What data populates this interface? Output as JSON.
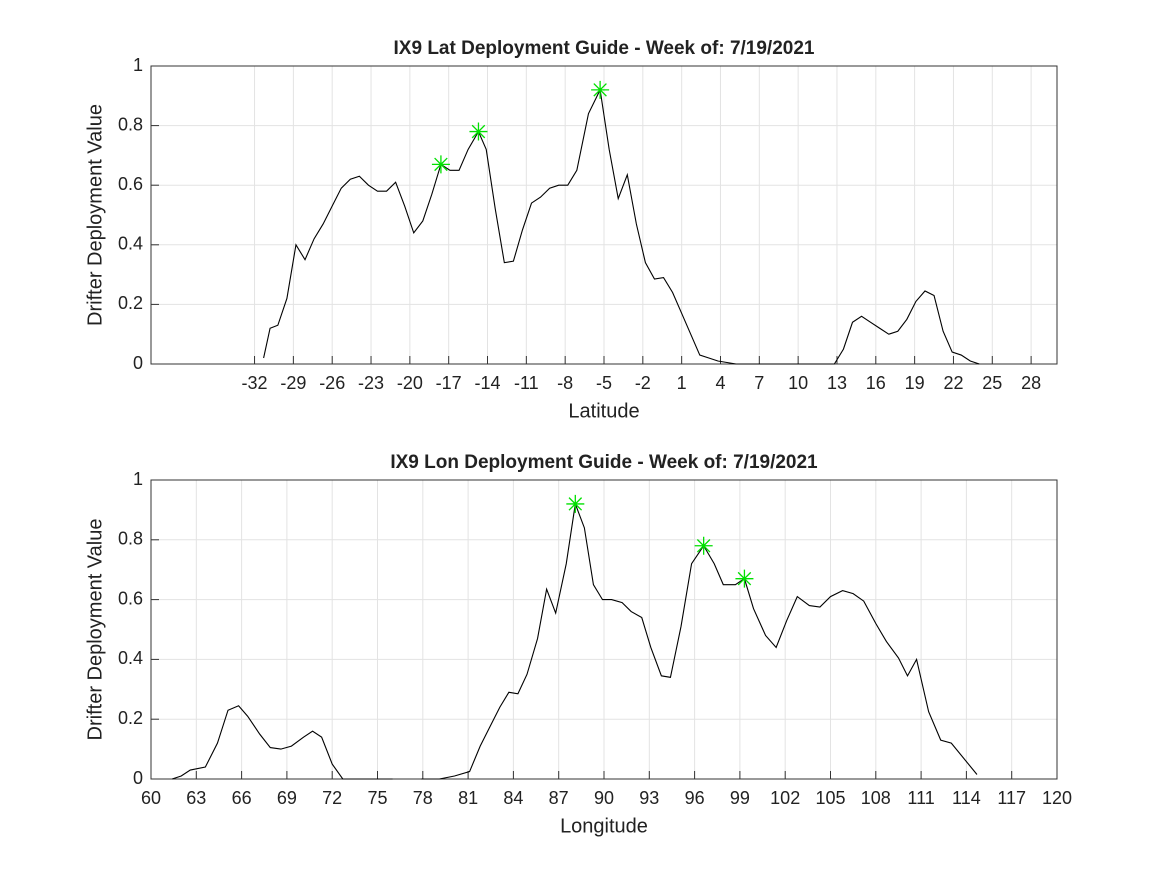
{
  "chart_data": [
    {
      "type": "line",
      "title": "IX9 Lat Deployment Guide - Week of: 7/19/2021",
      "xlabel": "Latitude",
      "ylabel": "Drifter Deployment Value",
      "xlim": [
        -40,
        30
      ],
      "xticks": [
        -32,
        -29,
        -26,
        -23,
        -20,
        -17,
        -14,
        -11,
        -8,
        -5,
        -2,
        1,
        4,
        7,
        10,
        13,
        16,
        19,
        22,
        25,
        28
      ],
      "ylim": [
        0,
        1
      ],
      "yticks": [
        0,
        0.2,
        0.4,
        0.6,
        0.8,
        1
      ],
      "grid": true,
      "box": true,
      "series": [
        {
          "color": "#000000",
          "marker": "none",
          "x": [
            -31.3,
            -30.8,
            -30.2,
            -29.5,
            -28.8,
            -28.1,
            -27.4,
            -26.7,
            -26.0,
            -25.3,
            -24.6,
            -23.9,
            -23.2,
            -22.5,
            -21.8,
            -21.1,
            -20.4,
            -19.7,
            -19.0,
            -18.3,
            -17.6,
            -16.9,
            -16.2,
            -15.5,
            -14.7,
            -14.1,
            -13.4,
            -12.7,
            -12.0,
            -11.3,
            -10.6,
            -9.9,
            -9.2,
            -8.5,
            -7.8,
            -7.1,
            -6.2,
            -5.3,
            -4.6,
            -3.9,
            -3.2,
            -2.5,
            -1.8,
            -1.1,
            -0.4,
            0.3,
            1.0,
            1.7,
            2.4,
            3.1,
            3.8,
            4.5,
            5.2,
            6.0,
            7.0,
            10.0,
            12.8,
            13.5,
            14.2,
            14.9,
            15.6,
            16.3,
            17.0,
            17.7,
            18.4,
            19.1,
            19.8,
            20.5,
            21.2,
            21.9,
            22.6,
            23.3,
            24.0
          ],
          "values": [
            0.02,
            0.12,
            0.13,
            0.22,
            0.4,
            0.35,
            0.42,
            0.47,
            0.53,
            0.59,
            0.62,
            0.63,
            0.6,
            0.58,
            0.58,
            0.61,
            0.53,
            0.44,
            0.48,
            0.57,
            0.67,
            0.65,
            0.65,
            0.72,
            0.78,
            0.72,
            0.52,
            0.34,
            0.345,
            0.45,
            0.54,
            0.56,
            0.59,
            0.6,
            0.6,
            0.65,
            0.84,
            0.92,
            0.72,
            0.555,
            0.635,
            0.47,
            0.34,
            0.285,
            0.29,
            0.24,
            0.17,
            0.1,
            0.03,
            0.02,
            0.01,
            0.005,
            0.0,
            0.0,
            0.0,
            0.0,
            0.0,
            0.05,
            0.14,
            0.16,
            0.14,
            0.12,
            0.1,
            0.11,
            0.15,
            0.21,
            0.245,
            0.23,
            0.11,
            0.04,
            0.03,
            0.01,
            0.0
          ]
        },
        {
          "color": "#00e000",
          "marker": "star",
          "x": [
            -17.6,
            -14.7,
            -5.3
          ],
          "values": [
            0.67,
            0.78,
            0.92
          ]
        }
      ]
    },
    {
      "type": "line",
      "title": "IX9 Lon Deployment Guide - Week of: 7/19/2021",
      "xlabel": "Longitude",
      "ylabel": "Drifter Deployment Value",
      "xlim": [
        60,
        120
      ],
      "xticks": [
        60,
        63,
        66,
        69,
        72,
        75,
        78,
        81,
        84,
        87,
        90,
        93,
        96,
        99,
        102,
        105,
        108,
        111,
        114,
        117,
        120
      ],
      "ylim": [
        0,
        1
      ],
      "yticks": [
        0,
        0.2,
        0.4,
        0.6,
        0.8,
        1
      ],
      "grid": true,
      "box": true,
      "series": [
        {
          "color": "#000000",
          "marker": "none",
          "x": [
            61.4,
            62.0,
            62.6,
            63.6,
            64.4,
            65.1,
            65.8,
            66.4,
            67.2,
            67.9,
            68.6,
            69.3,
            70.1,
            70.7,
            71.3,
            72.0,
            72.7,
            76.0,
            null,
            77.9,
            79.1,
            80.1,
            81.1,
            81.8,
            82.4,
            83.1,
            83.7,
            84.3,
            84.9,
            85.6,
            86.2,
            86.8,
            87.5,
            88.1,
            88.7,
            89.3,
            89.9,
            90.5,
            91.2,
            91.8,
            92.5,
            93.1,
            93.8,
            94.4,
            95.1,
            95.8,
            96.6,
            97.3,
            97.9,
            98.7,
            99.3,
            99.9,
            100.7,
            101.4,
            102.1,
            102.8,
            103.6,
            104.3,
            105.0,
            105.8,
            106.5,
            107.2,
            108.0,
            108.7,
            109.5,
            110.1,
            110.7,
            111.5,
            112.3,
            113.0,
            114.7
          ],
          "values": [
            0,
            0.01,
            0.03,
            0.04,
            0.12,
            0.23,
            0.245,
            0.21,
            0.15,
            0.105,
            0.1,
            0.11,
            0.14,
            0.16,
            0.14,
            0.05,
            0,
            0,
            null,
            0,
            0,
            0.01,
            0.025,
            0.11,
            0.17,
            0.24,
            0.29,
            0.285,
            0.35,
            0.47,
            0.635,
            0.555,
            0.72,
            0.92,
            0.84,
            0.65,
            0.6,
            0.6,
            0.59,
            0.56,
            0.54,
            0.44,
            0.345,
            0.34,
            0.51,
            0.72,
            0.78,
            0.72,
            0.65,
            0.65,
            0.67,
            0.57,
            0.48,
            0.44,
            0.53,
            0.61,
            0.58,
            0.575,
            0.61,
            0.63,
            0.62,
            0.595,
            0.52,
            0.46,
            0.405,
            0.345,
            0.4,
            0.225,
            0.13,
            0.12,
            0.015
          ]
        },
        {
          "color": "#00e000",
          "marker": "star",
          "x": [
            88.1,
            96.6,
            99.3
          ],
          "values": [
            0.92,
            0.78,
            0.67
          ]
        }
      ]
    }
  ]
}
